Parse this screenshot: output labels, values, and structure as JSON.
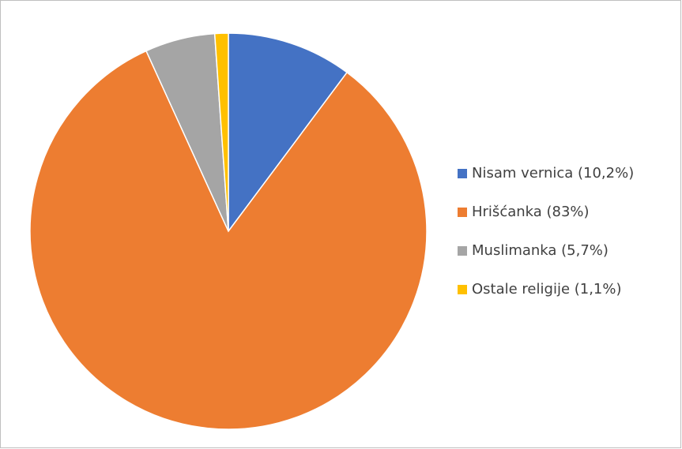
{
  "chart_data": {
    "type": "pie",
    "categories": [
      "Nisam vernica (10,2%)",
      "Hrišćanka (83%)",
      "Muslimanka (5,7%)",
      "Ostale religije (1,1%)"
    ],
    "values": [
      10.2,
      83,
      5.7,
      1.1
    ],
    "colors": [
      "#4472c4",
      "#ed7d31",
      "#a5a5a5",
      "#ffc000"
    ],
    "legend": "right"
  }
}
